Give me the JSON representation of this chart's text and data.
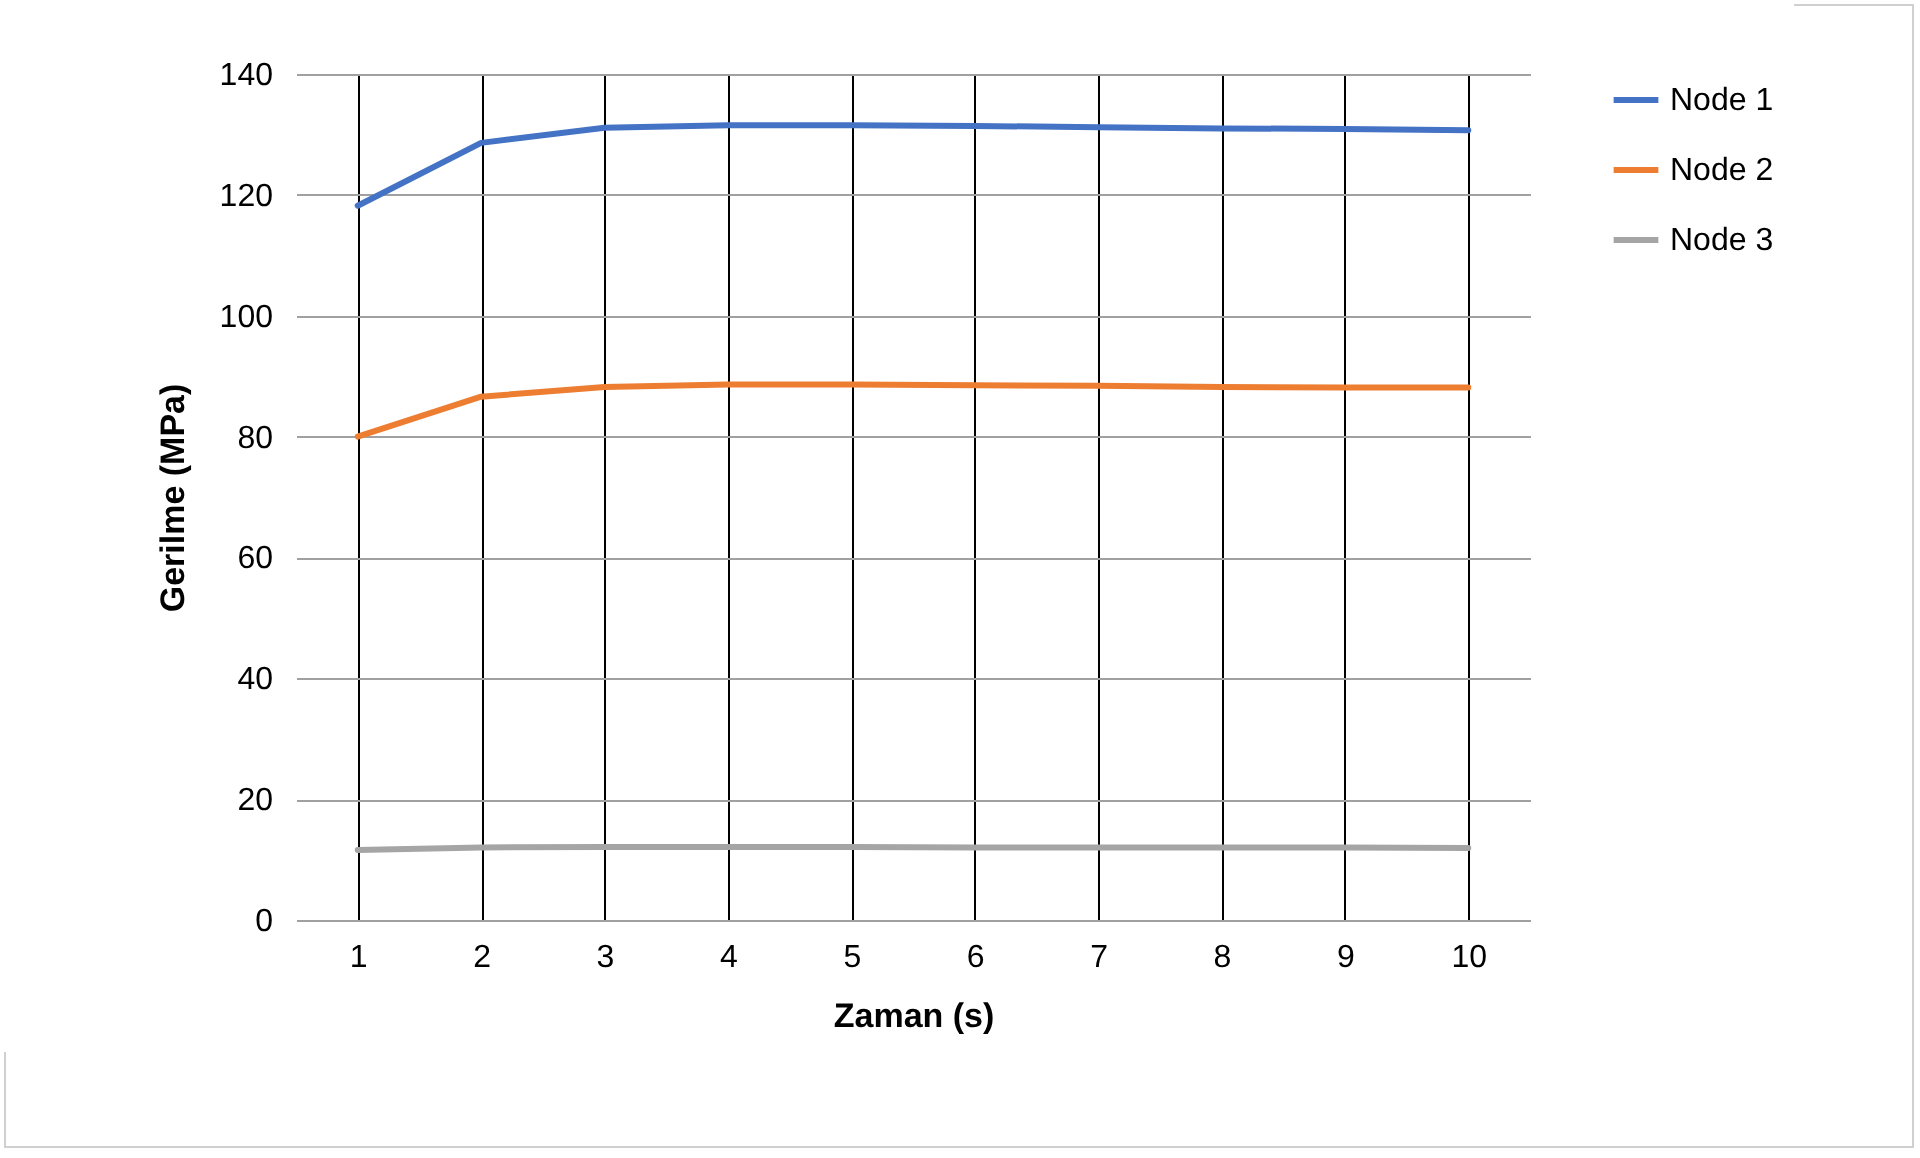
{
  "chart_data": {
    "type": "line",
    "xlabel": "Zaman (s)",
    "ylabel": "Gerilme (MPa)",
    "categories": [
      "1",
      "2",
      "3",
      "4",
      "5",
      "6",
      "7",
      "8",
      "9",
      "10"
    ],
    "series": [
      {
        "name": "Node 1",
        "color": "#4472c4",
        "values": [
          118.2,
          128.6,
          131.1,
          131.5,
          131.5,
          131.4,
          131.2,
          131.0,
          130.9,
          130.7
        ]
      },
      {
        "name": "Node 2",
        "color": "#ed7d31",
        "values": [
          80.0,
          86.6,
          88.2,
          88.6,
          88.6,
          88.5,
          88.4,
          88.2,
          88.1,
          88.1
        ]
      },
      {
        "name": "Node 3",
        "color": "#a5a5a5",
        "values": [
          11.6,
          12.0,
          12.1,
          12.1,
          12.1,
          12.0,
          12.0,
          12.0,
          12.0,
          11.9
        ]
      }
    ],
    "ylim": [
      0,
      140
    ],
    "yticks": [
      0,
      20,
      40,
      60,
      80,
      100,
      120,
      140
    ],
    "grid": true,
    "legend": "right",
    "marker": "none",
    "line_style": "solid"
  }
}
